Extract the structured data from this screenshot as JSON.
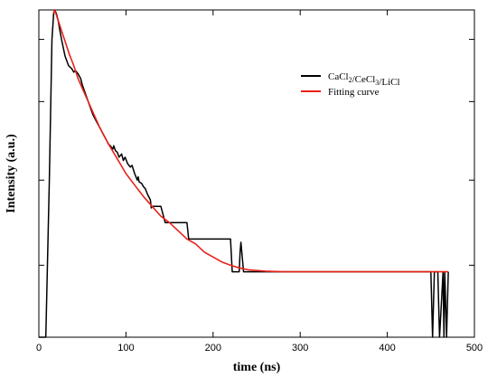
{
  "chart_data": {
    "type": "line",
    "title": "",
    "xlabel": "time (ns)",
    "ylabel": "Intensity (a.u.)",
    "xlim": [
      0,
      500
    ],
    "ylim": [
      0,
      1
    ],
    "y_scale": "log",
    "grid": false,
    "legend_position": "top-right",
    "x_ticks": [
      0,
      100,
      200,
      300,
      400,
      500
    ],
    "y_tick_values": [
      0.22,
      0.48,
      0.72,
      0.91
    ],
    "legend": [
      {
        "parts": [
          {
            "t": "CaCl"
          },
          {
            "t": "2",
            "sub": true
          },
          {
            "t": "/CeCl"
          },
          {
            "t": "3",
            "sub": true
          },
          {
            "t": "/LiCl"
          }
        ],
        "color": "#000000"
      },
      {
        "parts": [
          {
            "t": "Fitting curve"
          }
        ],
        "color": "#e8201a"
      }
    ],
    "series": [
      {
        "name": "CaCl2/CeCl3/LiCl",
        "color": "#000000",
        "x": [
          0,
          5,
          8,
          12,
          15,
          17,
          18,
          20,
          22,
          24,
          26,
          30,
          34,
          38,
          40,
          42,
          45,
          48,
          50,
          54,
          58,
          62,
          66,
          70,
          74,
          78,
          80,
          82,
          85,
          86,
          88,
          90,
          92,
          95,
          97,
          99,
          102,
          105,
          107,
          110,
          113,
          114,
          115,
          118,
          120,
          122,
          125,
          128,
          129,
          130,
          135,
          140,
          145,
          150,
          160,
          170,
          172,
          174,
          180,
          190,
          200,
          210,
          220,
          222,
          225,
          228,
          230,
          231,
          232,
          233,
          235,
          240,
          260,
          300,
          350,
          400,
          440,
          450,
          452,
          454,
          456,
          458,
          460,
          462,
          464,
          465,
          466,
          468,
          470
        ],
        "y": [
          0.0,
          0.0,
          0.0,
          0.48,
          0.91,
          0.99,
          1.0,
          0.99,
          0.97,
          0.94,
          0.91,
          0.86,
          0.83,
          0.82,
          0.81,
          0.815,
          0.805,
          0.79,
          0.77,
          0.74,
          0.71,
          0.68,
          0.66,
          0.64,
          0.62,
          0.6,
          0.59,
          0.585,
          0.575,
          0.585,
          0.57,
          0.565,
          0.55,
          0.56,
          0.54,
          0.55,
          0.53,
          0.52,
          0.525,
          0.5,
          0.48,
          0.49,
          0.475,
          0.47,
          0.46,
          0.455,
          0.435,
          0.42,
          0.395,
          0.4,
          0.4,
          0.4,
          0.35,
          0.35,
          0.35,
          0.35,
          0.3,
          0.3,
          0.3,
          0.3,
          0.3,
          0.3,
          0.3,
          0.2,
          0.2,
          0.2,
          0.2,
          0.26,
          0.29,
          0.26,
          0.2,
          0.2,
          0.2,
          0.2,
          0.2,
          0.2,
          0.2,
          0.2,
          0.0,
          0.2,
          0.2,
          0.2,
          0.0,
          0.1,
          0.2,
          0.0,
          0.2,
          0.0,
          0.2
        ]
      },
      {
        "name": "Fitting curve",
        "color": "#e8201a",
        "x": [
          17,
          18,
          20,
          25,
          30,
          35,
          40,
          45,
          50,
          55,
          60,
          70,
          80,
          90,
          100,
          110,
          120,
          130,
          140,
          150,
          160,
          170,
          180,
          190,
          200,
          210,
          220,
          230,
          240,
          260,
          280,
          300,
          320,
          340,
          360,
          380,
          400,
          420,
          440,
          460,
          470
        ],
        "y": [
          0.99,
          1.0,
          0.985,
          0.945,
          0.905,
          0.865,
          0.83,
          0.79,
          0.76,
          0.73,
          0.7,
          0.64,
          0.59,
          0.545,
          0.5,
          0.465,
          0.43,
          0.4,
          0.37,
          0.35,
          0.325,
          0.3,
          0.285,
          0.26,
          0.245,
          0.23,
          0.22,
          0.212,
          0.206,
          0.202,
          0.2,
          0.2,
          0.2,
          0.2,
          0.2,
          0.2,
          0.2,
          0.2,
          0.2,
          0.2,
          0.2
        ]
      }
    ]
  }
}
